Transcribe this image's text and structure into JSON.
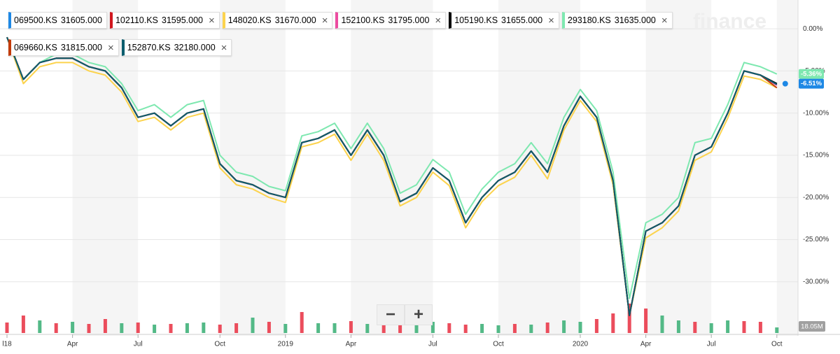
{
  "chart_data": {
    "type": "line",
    "watermark": "finance",
    "categories": [
      "l18",
      null,
      null,
      null,
      "Apr",
      null,
      null,
      null,
      "Jul",
      null,
      null,
      null,
      null,
      "Oct",
      null,
      null,
      null,
      "2019",
      null,
      null,
      null,
      "Apr",
      null,
      null,
      null,
      null,
      "Jul",
      null,
      null,
      null,
      "Oct",
      null,
      null,
      null,
      null,
      "2020",
      null,
      null,
      null,
      "Apr",
      null,
      null,
      null,
      "Jul",
      null,
      null,
      null,
      "Oct"
    ],
    "ylim": [
      -35,
      3
    ],
    "yticks": [
      {
        "value": 0,
        "label": "0.00%"
      },
      {
        "value": -5,
        "label": "-5.00%"
      },
      {
        "value": -10,
        "label": "-10.00%"
      },
      {
        "value": -15,
        "label": "-15.00%"
      },
      {
        "value": -20,
        "label": "-20.00%"
      },
      {
        "value": -25,
        "label": "-25.00%"
      },
      {
        "value": -30,
        "label": "-30.00%"
      }
    ],
    "grid": true,
    "series": [
      {
        "name": "069500.KS",
        "legend_value": "31605.000",
        "color": "#1e88e5",
        "values": [
          -1,
          -6,
          -4,
          -3.5,
          -3.5,
          -4.5,
          -5,
          -7,
          -10.5,
          -10,
          -11.5,
          -10,
          -9.5,
          -16,
          -18,
          -18.5,
          -19.5,
          -20,
          -13.5,
          -13,
          -12,
          -15,
          -12,
          -15,
          -20.5,
          -19.5,
          -16.5,
          -18,
          -23,
          -20,
          -18,
          -17,
          -14.5,
          -17,
          -11.5,
          -8,
          -10.5,
          -18,
          -34,
          -24,
          -23,
          -21,
          -15,
          -14,
          -10,
          -5,
          -5.5,
          -6.51
        ]
      },
      {
        "name": "102110.KS",
        "legend_value": "31595.000",
        "color": "#d0161e",
        "values": [
          -1,
          -6,
          -4,
          -3.5,
          -3.5,
          -4.5,
          -5,
          -7,
          -10.5,
          -10,
          -11.5,
          -10,
          -9.5,
          -16,
          -18,
          -18.5,
          -19.5,
          -20,
          -13.5,
          -13,
          -12,
          -15,
          -12,
          -15,
          -20.5,
          -19.5,
          -16.5,
          -18,
          -23,
          -20,
          -18,
          -17,
          -14.5,
          -17,
          -11.5,
          -8,
          -10.5,
          -18,
          -34,
          -24,
          -23,
          -21,
          -15,
          -14,
          -10,
          -5,
          -5.5,
          -6.6
        ]
      },
      {
        "name": "148020.KS",
        "legend_value": "31670.000",
        "color": "#fcd34d",
        "values": [
          -1,
          -6.5,
          -4.5,
          -4,
          -4,
          -5,
          -5.5,
          -7.5,
          -11,
          -10.5,
          -12,
          -10.5,
          -10,
          -16.5,
          -18.5,
          -19,
          -20,
          -20.6,
          -14,
          -13.5,
          -12.5,
          -15.6,
          -12.5,
          -15.6,
          -21,
          -20,
          -17,
          -18.6,
          -23.6,
          -20.5,
          -18.6,
          -17.6,
          -15,
          -17.8,
          -12,
          -8.5,
          -11,
          -18.5,
          -34,
          -24.8,
          -23.6,
          -21.6,
          -15.6,
          -14.6,
          -10.6,
          -5.6,
          -6,
          -7
        ]
      },
      {
        "name": "152100.KS",
        "legend_value": "31795.000",
        "color": "#ec4ca0",
        "values": [
          -1,
          -6,
          -4,
          -3.5,
          -3.5,
          -4.5,
          -5,
          -7,
          -10.5,
          -10,
          -11.5,
          -10,
          -9.5,
          -16,
          -18,
          -18.5,
          -19.5,
          -20,
          -13.5,
          -13,
          -12,
          -15,
          -12,
          -15,
          -20.5,
          -19.5,
          -16.5,
          -18,
          -23,
          -20,
          -18,
          -17,
          -14.5,
          -17,
          -11.5,
          -8,
          -10.5,
          -18,
          -34,
          -24,
          -23,
          -21,
          -15,
          -14,
          -10,
          -5,
          -5.5,
          -6.7
        ]
      },
      {
        "name": "105190.KS",
        "legend_value": "31655.000",
        "color": "#000000",
        "values": [
          -1,
          -6,
          -4,
          -3.5,
          -3.5,
          -4.5,
          -5,
          -7,
          -10.5,
          -10,
          -11.5,
          -10,
          -9.5,
          -16,
          -18,
          -18.5,
          -19.5,
          -20,
          -13.5,
          -13,
          -12,
          -15,
          -12,
          -15,
          -20.5,
          -19.5,
          -16.5,
          -18,
          -23,
          -20,
          -18,
          -17,
          -14.5,
          -17,
          -11.5,
          -8,
          -10.5,
          -18,
          -34,
          -24,
          -23,
          -21,
          -15,
          -14,
          -10,
          -5,
          -5.5,
          -6.5
        ]
      },
      {
        "name": "293180.KS",
        "legend_value": "31635.000",
        "color": "#7ee8b0",
        "values": [
          -1,
          -6,
          -4,
          -3,
          -3,
          -4,
          -4.5,
          -6.5,
          -9.7,
          -9,
          -10.5,
          -9,
          -8.5,
          -15,
          -17,
          -17.5,
          -18.7,
          -19.2,
          -12.7,
          -12.2,
          -11.2,
          -14.2,
          -11.2,
          -14.2,
          -19.5,
          -18.5,
          -15.5,
          -17,
          -22,
          -19,
          -17,
          -16,
          -13.5,
          -16,
          -10.5,
          -7.2,
          -9.7,
          -17,
          -32,
          -23,
          -22,
          -20,
          -13.5,
          -13,
          -9,
          -4,
          -4.5,
          -5.36
        ]
      },
      {
        "name": "069660.KS",
        "legend_value": "31815.000",
        "color": "#c23b0a",
        "values": [
          -1,
          -6,
          -4,
          -3.5,
          -3.5,
          -4.5,
          -5,
          -7,
          -10.5,
          -10,
          -11.5,
          -10,
          -9.5,
          -16,
          -18,
          -18.5,
          -19.5,
          -20,
          -13.5,
          -13,
          -12,
          -15,
          -12,
          -15,
          -20.5,
          -19.5,
          -16.5,
          -18,
          -23,
          -20,
          -18,
          -17,
          -14.5,
          -17,
          -11.5,
          -8,
          -10.5,
          -18,
          -34,
          -24,
          -23,
          -21,
          -15,
          -14,
          -10,
          -5,
          -5.5,
          -7
        ]
      },
      {
        "name": "152870.KS",
        "legend_value": "32180.000",
        "color": "#0b5e6e",
        "values": [
          -1,
          -6,
          -4,
          -3.5,
          -3.5,
          -4.5,
          -5,
          -7,
          -10.5,
          -10,
          -11.5,
          -10,
          -9.5,
          -16,
          -18,
          -18.5,
          -19.5,
          -20,
          -13.5,
          -13,
          -12,
          -15,
          -12,
          -15,
          -20.5,
          -19.5,
          -16.5,
          -18,
          -23,
          -20,
          -18,
          -17,
          -14.5,
          -17,
          -11.5,
          -8,
          -10.5,
          -18,
          -34,
          -24,
          -23,
          -21,
          -15,
          -14,
          -10,
          -5,
          -5.5,
          -6.6
        ]
      }
    ],
    "end_labels": [
      {
        "series": 5,
        "label": "-5.36%"
      },
      {
        "series": 0,
        "label": "-6.51%"
      }
    ],
    "volume": {
      "values": [
        15,
        25,
        18,
        14,
        16,
        13,
        20,
        14,
        15,
        12,
        13,
        14,
        15,
        12,
        14,
        22,
        16,
        13,
        30,
        14,
        14,
        17,
        13,
        13,
        18,
        12,
        16,
        14,
        12,
        13,
        11,
        13,
        12,
        15,
        18,
        16,
        20,
        28,
        42,
        35,
        25,
        18,
        16,
        14,
        18,
        17,
        16,
        8
      ],
      "down": [
        true,
        true,
        false,
        true,
        false,
        true,
        true,
        false,
        true,
        false,
        true,
        false,
        false,
        true,
        true,
        false,
        true,
        false,
        true,
        false,
        false,
        true,
        false,
        true,
        true,
        false,
        false,
        true,
        true,
        false,
        false,
        true,
        false,
        true,
        false,
        false,
        true,
        true,
        true,
        true,
        false,
        false,
        true,
        false,
        false,
        true,
        true,
        false
      ],
      "up_color": "#53b987",
      "down_color": "#eb4d5c",
      "ylim": [
        0,
        120
      ],
      "label": "18.05M"
    },
    "zoom": {
      "minus": "−",
      "plus": "+"
    },
    "close_icon": "×"
  }
}
